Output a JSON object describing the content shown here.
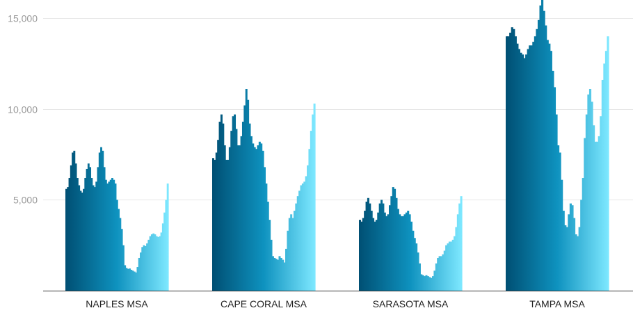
{
  "chart_data": {
    "type": "bar",
    "title": "",
    "xlabel": "",
    "ylabel": "",
    "ylim": [
      0,
      16000
    ],
    "yticks": [
      5000,
      10000,
      15000
    ],
    "ytick_labels": [
      "5,000",
      "10,000",
      "15,000"
    ],
    "grid": true,
    "legend": "none",
    "gradient_colors": [
      "#004f73",
      "#0e92bf",
      "#7ee8ff"
    ],
    "series": [
      {
        "name": "NAPLES MSA",
        "values": [
          5600,
          5700,
          6200,
          6900,
          7600,
          7700,
          7000,
          6200,
          5800,
          5500,
          5400,
          5600,
          6200,
          6700,
          7000,
          6800,
          6200,
          5800,
          5700,
          6000,
          6800,
          7600,
          7900,
          7700,
          6800,
          6100,
          5900,
          6000,
          6100,
          6200,
          6100,
          5900,
          5000,
          4500,
          4000,
          3400,
          2500,
          1400,
          1250,
          1200,
          1220,
          1150,
          1100,
          1050,
          1000,
          1300,
          1800,
          2100,
          2400,
          2500,
          2450,
          2600,
          2800,
          3000,
          3100,
          3150,
          3100,
          3000,
          2950,
          3000,
          3200,
          3700,
          4300,
          5000,
          5900
        ]
      },
      {
        "name": "CAPE CORAL MSA",
        "values": [
          7300,
          7200,
          7600,
          8300,
          9300,
          9700,
          9200,
          8000,
          7200,
          7200,
          7900,
          8800,
          9600,
          9700,
          8900,
          8000,
          8000,
          8500,
          9300,
          10200,
          11100,
          10500,
          9200,
          8500,
          8100,
          7900,
          7800,
          8000,
          8200,
          8100,
          7700,
          6800,
          5900,
          4900,
          3900,
          2800,
          1900,
          1800,
          1750,
          1700,
          1900,
          1800,
          1700,
          1550,
          2300,
          3300,
          4000,
          4200,
          4000,
          4400,
          4800,
          5200,
          5500,
          5800,
          5900,
          6000,
          6300,
          6900,
          7800,
          8800,
          9700,
          10300
        ]
      },
      {
        "name": "SARASOTA MSA",
        "values": [
          3900,
          3800,
          4000,
          4400,
          4900,
          5100,
          4800,
          4400,
          4000,
          3800,
          3900,
          4300,
          4800,
          5000,
          4800,
          4300,
          4100,
          4200,
          4700,
          5200,
          5700,
          5600,
          5100,
          4500,
          4200,
          4100,
          4100,
          4200,
          4300,
          4400,
          4200,
          3800,
          3300,
          2900,
          2600,
          2100,
          1500,
          900,
          850,
          800,
          850,
          800,
          750,
          700,
          800,
          1100,
          1500,
          1800,
          1900,
          1900,
          2000,
          2200,
          2500,
          2600,
          2700,
          2700,
          2800,
          3000,
          3500,
          4200,
          4800,
          5200
        ]
      },
      {
        "name": "TAMPA MSA",
        "values": [
          14000,
          14000,
          14200,
          14500,
          14400,
          14000,
          13600,
          13300,
          13100,
          13000,
          12800,
          13000,
          13300,
          13500,
          13500,
          13700,
          14000,
          14400,
          14900,
          15700,
          16000,
          15400,
          14600,
          13800,
          13600,
          13200,
          12100,
          11200,
          9700,
          8000,
          7600,
          6100,
          4400,
          3600,
          3500,
          4200,
          4800,
          4700,
          4000,
          3100,
          3000,
          3500,
          5000,
          6200,
          8400,
          9700,
          10800,
          11100,
          10400,
          9100,
          8200,
          8200,
          8500,
          9600,
          11600,
          12500,
          13200,
          14000
        ]
      }
    ]
  }
}
